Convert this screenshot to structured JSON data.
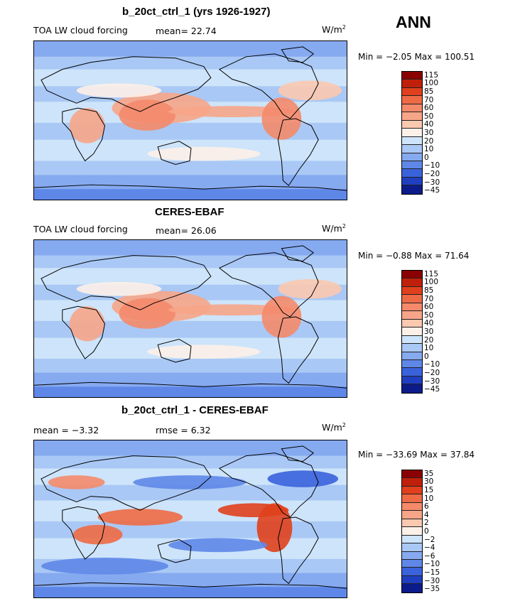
{
  "season": "ANN",
  "panels": [
    {
      "title": "b_20ct_ctrl_1 (yrs 1926-1927)",
      "variable": "TOA LW cloud forcing",
      "stat1": "mean=  22.74",
      "stat2": "",
      "units": "W/m",
      "units_sup": "2",
      "minmax": "Min =  −2.05 Max = 100.51",
      "colorbar_levels": [
        "115",
        "100",
        "85",
        "70",
        "60",
        "50",
        "40",
        "30",
        "20",
        "10",
        "0",
        "−10",
        "−20",
        "−30",
        "−45"
      ]
    },
    {
      "title": "CERES-EBAF",
      "variable": "TOA LW cloud forcing",
      "stat1": "mean=  26.06",
      "stat2": "",
      "units": "W/m",
      "units_sup": "2",
      "minmax": "Min =  −0.88 Max =  71.64",
      "colorbar_levels": [
        "115",
        "100",
        "85",
        "70",
        "60",
        "50",
        "40",
        "30",
        "20",
        "10",
        "0",
        "−10",
        "−20",
        "−30",
        "−45"
      ]
    },
    {
      "title": "b_20ct_ctrl_1 - CERES-EBAF",
      "variable": "",
      "stat1": "mean =   −3.32",
      "stat2": "rmse =   6.32",
      "units": "W/m",
      "units_sup": "2",
      "minmax": "Min = −33.69 Max =  37.84",
      "colorbar_levels": [
        "35",
        "30",
        "15",
        "10",
        "6",
        "4",
        "2",
        "0",
        "−2",
        "−4",
        "−6",
        "−10",
        "−15",
        "−30",
        "−35"
      ]
    }
  ],
  "colors": {
    "palette": [
      "#8b0000",
      "#c0200a",
      "#e0401c",
      "#ee6a45",
      "#f48a6a",
      "#f7a588",
      "#fbc8b0",
      "#fdf0e8",
      "#cde4fa",
      "#a9c8f5",
      "#86aaf0",
      "#5e87e8",
      "#3a62db",
      "#1f3fc0",
      "#0b1c8a"
    ],
    "coast": "#000000"
  }
}
